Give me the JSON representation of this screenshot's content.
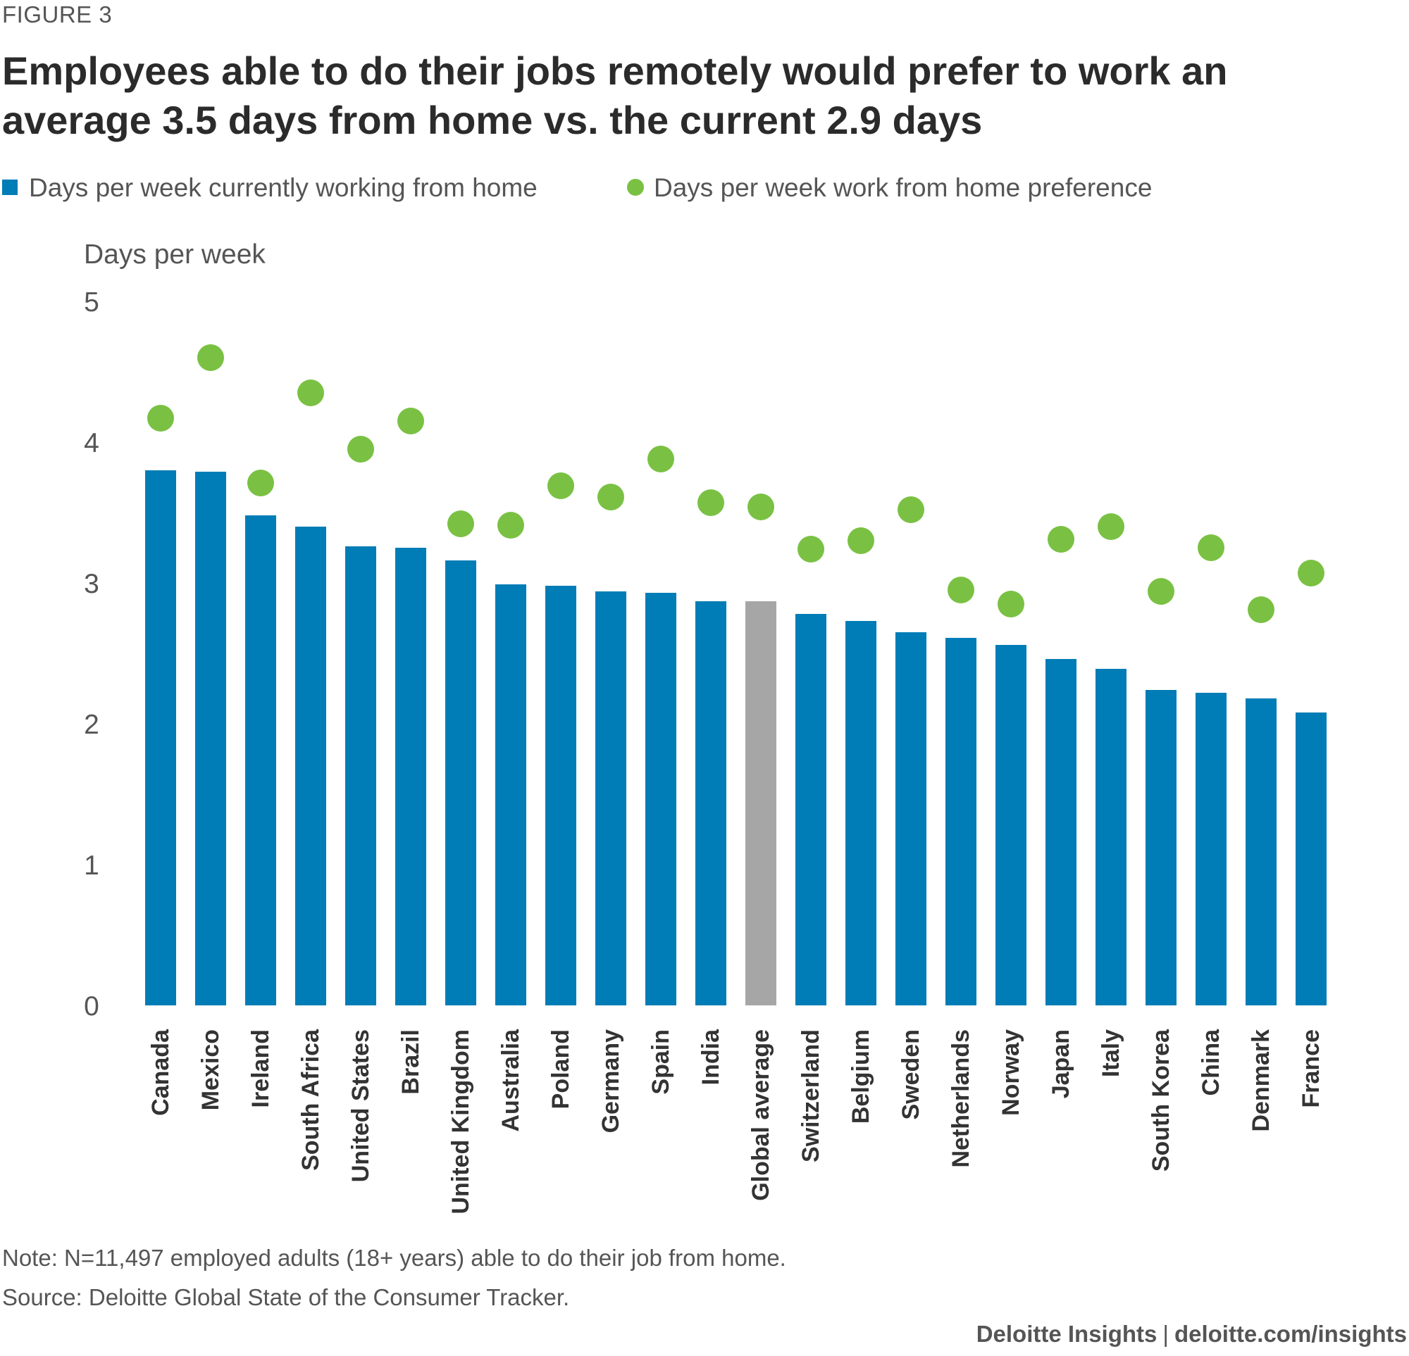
{
  "figure_label": "FIGURE 3",
  "footnotes": {
    "note": "Note: N=11,497 employed adults (18+ years) able to do their job from home.",
    "source": "Source: Deloitte Global State of the Consumer Tracker."
  },
  "footer": {
    "brand": "Deloitte Insights",
    "separator": "|",
    "url": "deloitte.com/insights"
  },
  "colors": {
    "bar": "#007cb6",
    "bar_highlight": "#a6a6a6",
    "dot": "#7ac143",
    "axis_text": "#555555"
  },
  "chart_data": {
    "type": "bar",
    "title": "Employees able to do their jobs remotely would prefer to work an average 3.5 days from home vs. the current 2.9 days",
    "xlabel": "",
    "ylabel": "Days per week",
    "ylim": [
      0,
      5
    ],
    "yticks": [
      "0",
      "1",
      "2",
      "3",
      "4",
      "5"
    ],
    "grid": false,
    "legend_position": "top-left",
    "highlight_category": "Global average",
    "categories": [
      "Canada",
      "Mexico",
      "Ireland",
      "South Africa",
      "United States",
      "Brazil",
      "United Kingdom",
      "Australia",
      "Poland",
      "Germany",
      "Spain",
      "India",
      "Global average",
      "Switzerland",
      "Belgium",
      "Sweden",
      "Netherlands",
      "Norway",
      "Japan",
      "Italy",
      "South Korea",
      "China",
      "Denmark",
      "France"
    ],
    "series": [
      {
        "name": "Days per week currently working from home",
        "kind": "bar",
        "values": [
          3.8,
          3.79,
          3.48,
          3.4,
          3.26,
          3.25,
          3.16,
          2.99,
          2.98,
          2.94,
          2.93,
          2.87,
          2.87,
          2.78,
          2.73,
          2.65,
          2.61,
          2.56,
          2.46,
          2.39,
          2.24,
          2.22,
          2.18,
          2.08
        ]
      },
      {
        "name": "Days per week work from home preference",
        "kind": "dot",
        "values": [
          4.17,
          4.6,
          3.71,
          4.35,
          3.95,
          4.15,
          3.42,
          3.41,
          3.69,
          3.61,
          3.88,
          3.57,
          3.54,
          3.24,
          3.3,
          3.52,
          2.95,
          2.85,
          3.31,
          3.4,
          2.94,
          3.25,
          2.81,
          3.07
        ]
      }
    ]
  }
}
